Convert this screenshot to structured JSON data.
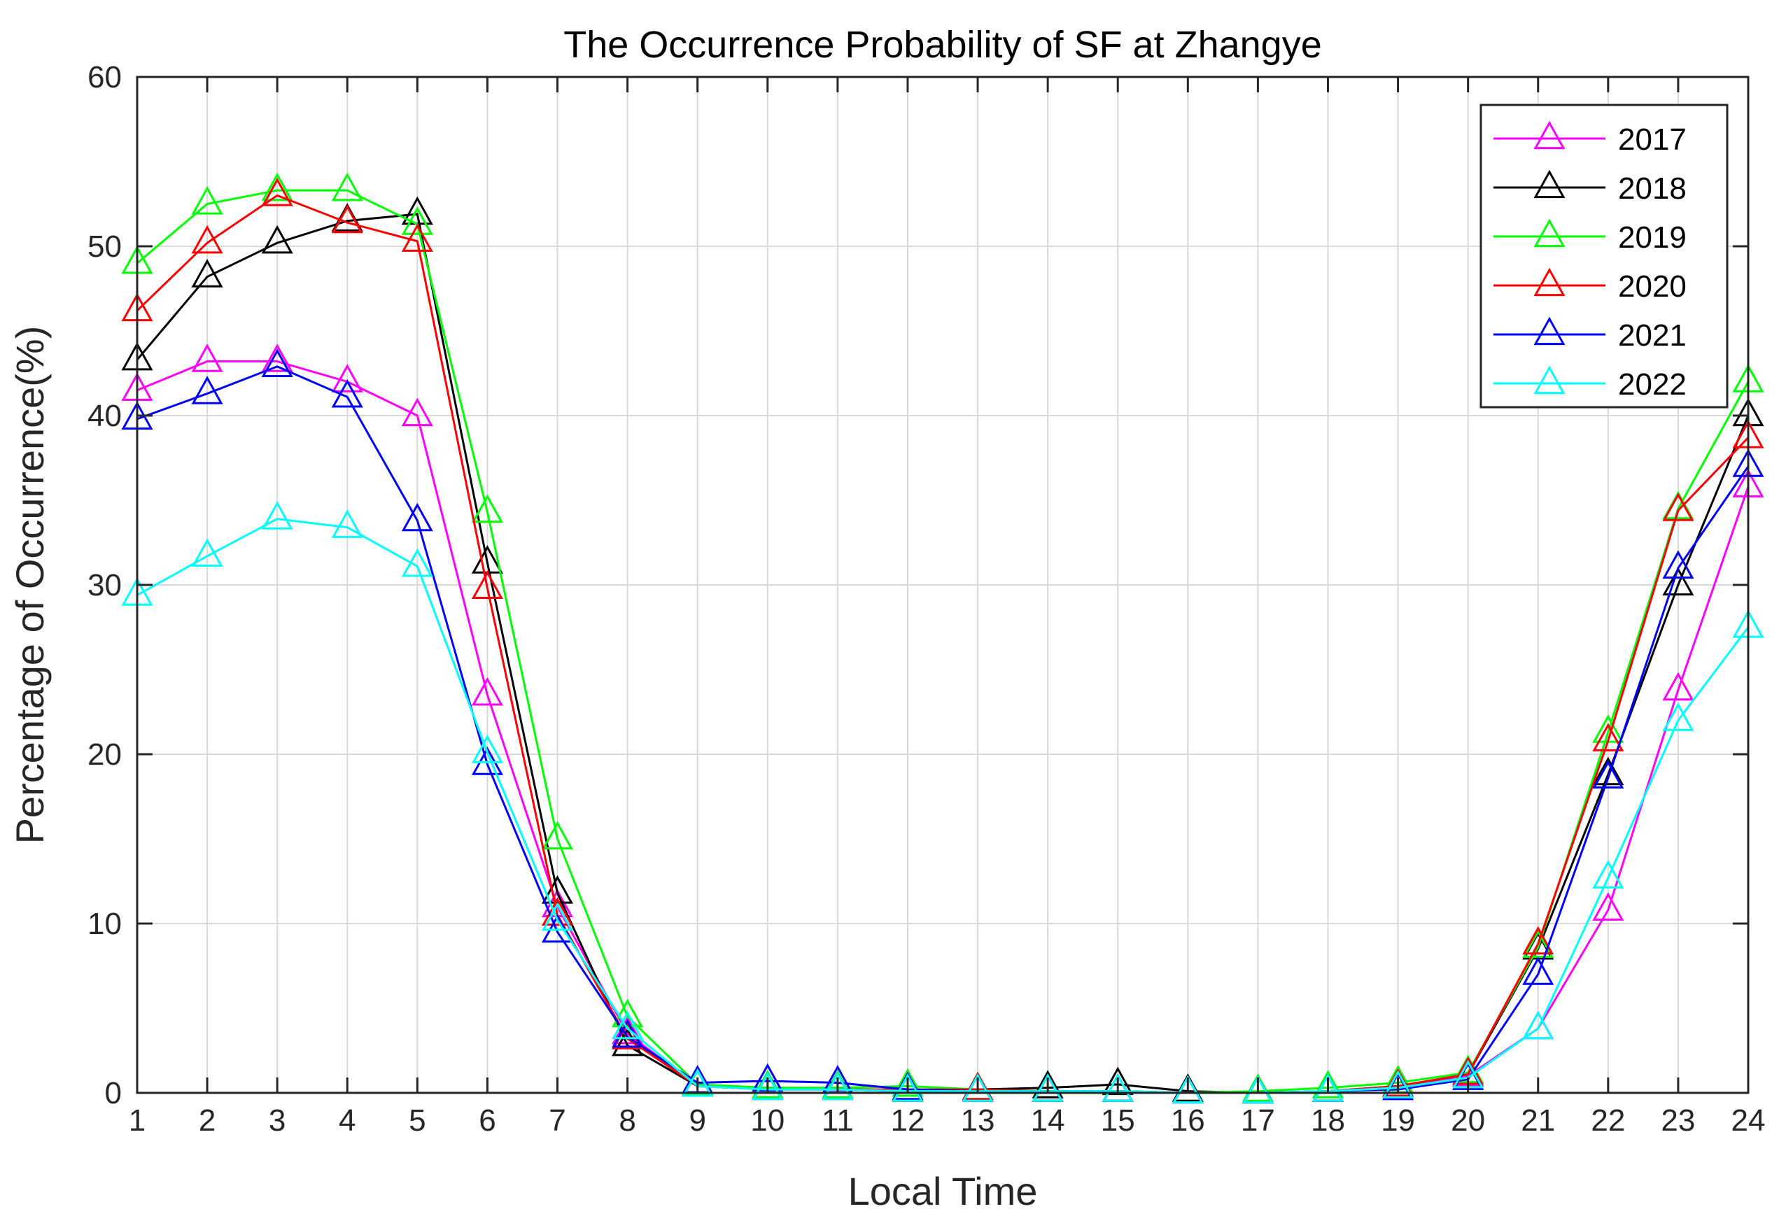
{
  "chart_data": {
    "type": "line",
    "title": "The Occurrence Probability of SF at Zhangye",
    "xlabel": "Local Time",
    "ylabel": "Percentage of Occurrence(%)",
    "x": [
      1,
      2,
      3,
      4,
      5,
      6,
      7,
      8,
      9,
      10,
      11,
      12,
      13,
      14,
      15,
      16,
      17,
      18,
      19,
      20,
      21,
      22,
      23,
      24
    ],
    "xlim": [
      1,
      24
    ],
    "ylim": [
      0,
      60
    ],
    "xticks": [
      1,
      2,
      3,
      4,
      5,
      6,
      7,
      8,
      9,
      10,
      11,
      12,
      13,
      14,
      15,
      16,
      17,
      18,
      19,
      20,
      21,
      22,
      23,
      24
    ],
    "yticks": [
      0,
      10,
      20,
      30,
      40,
      50,
      60
    ],
    "grid": true,
    "marker": "triangle-open",
    "legend_position": "top-right",
    "series": [
      {
        "name": "2017",
        "color": "#ff00ff",
        "values": [
          41.5,
          43.2,
          43.2,
          42.0,
          40.0,
          23.5,
          11.0,
          3.5,
          0.4,
          0.2,
          0.2,
          0.1,
          0.1,
          0.1,
          0.1,
          0.0,
          0.0,
          0.1,
          0.3,
          1.0,
          3.8,
          10.8,
          23.8,
          35.8
        ]
      },
      {
        "name": "2018",
        "color": "#000000",
        "values": [
          43.3,
          48.2,
          50.2,
          51.5,
          51.9,
          31.3,
          11.8,
          2.8,
          0.4,
          0.3,
          0.2,
          0.1,
          0.2,
          0.3,
          0.5,
          0.1,
          0.0,
          0.1,
          0.4,
          1.1,
          8.5,
          18.8,
          30.0,
          40.0
        ]
      },
      {
        "name": "2019",
        "color": "#00ff00",
        "values": [
          49.0,
          52.5,
          53.3,
          53.3,
          51.3,
          34.3,
          15.0,
          4.5,
          0.5,
          0.3,
          0.3,
          0.4,
          0.2,
          0.1,
          0.1,
          0.0,
          0.1,
          0.3,
          0.6,
          1.2,
          8.6,
          21.3,
          34.5,
          42.0
        ]
      },
      {
        "name": "2020",
        "color": "#ff0000",
        "values": [
          46.2,
          50.2,
          53.0,
          51.4,
          50.3,
          29.8,
          10.5,
          3.2,
          0.4,
          0.2,
          0.2,
          0.2,
          0.2,
          0.1,
          0.1,
          0.0,
          0.0,
          0.1,
          0.4,
          1.1,
          8.8,
          20.8,
          34.4,
          38.7
        ]
      },
      {
        "name": "2021",
        "color": "#0000ff",
        "values": [
          39.8,
          41.3,
          42.9,
          41.1,
          33.8,
          19.4,
          9.5,
          3.3,
          0.6,
          0.7,
          0.6,
          0.2,
          0.1,
          0.1,
          0.1,
          0.0,
          0.0,
          0.1,
          0.2,
          0.8,
          7.0,
          18.6,
          31.0,
          37.0
        ]
      },
      {
        "name": "2022",
        "color": "#00ffff",
        "values": [
          29.4,
          31.7,
          33.9,
          33.4,
          31.1,
          20.1,
          10.2,
          3.8,
          0.4,
          0.2,
          0.2,
          0.1,
          0.1,
          0.1,
          0.1,
          0.0,
          0.0,
          0.1,
          0.3,
          0.9,
          3.8,
          12.7,
          22.0,
          27.5
        ]
      }
    ]
  }
}
